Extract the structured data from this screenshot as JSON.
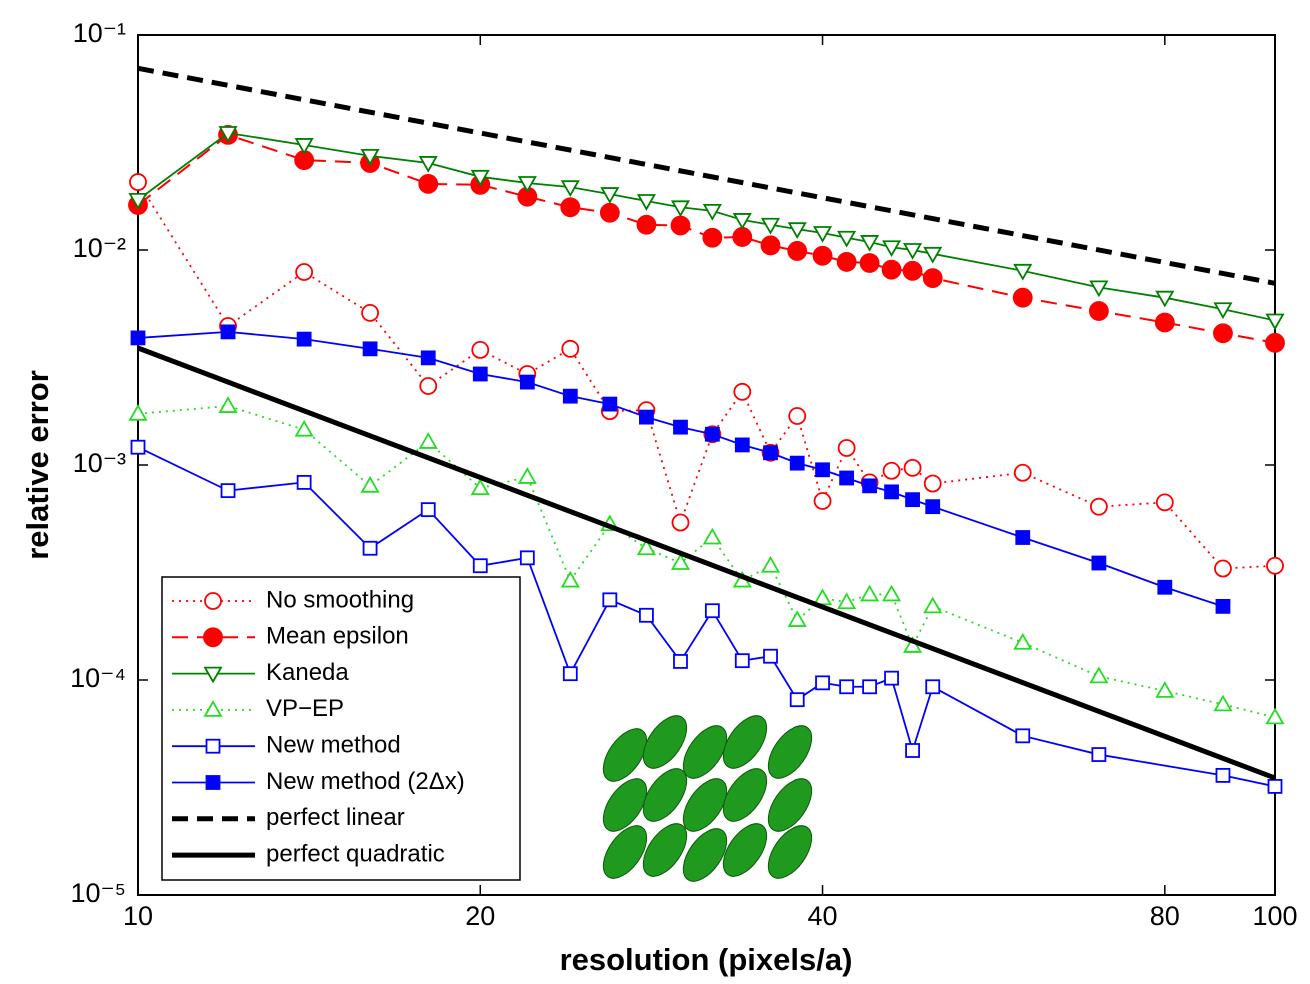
{
  "chart_data": {
    "type": "line",
    "xlog": true,
    "ylog": true,
    "grid": false,
    "legend": "lower left",
    "xlabel": "resolution (pixels/a)",
    "ylabel": "relative error",
    "xlim": [
      10,
      100
    ],
    "ylim": [
      1e-05,
      0.1
    ],
    "xticks": [
      10,
      20,
      40,
      80,
      100
    ],
    "yticks": [
      {
        "value": 0.1,
        "label": "10⁻¹"
      },
      {
        "value": 0.01,
        "label": "10⁻²"
      },
      {
        "value": 0.001,
        "label": "10⁻³"
      },
      {
        "value": 0.0001,
        "label": "10⁻⁴"
      },
      {
        "value": 1e-05,
        "label": "10⁻⁵"
      }
    ],
    "series": [
      {
        "name": "No smoothing",
        "color": "#ff0000",
        "dash": "dotted",
        "marker": "circle",
        "filled": false,
        "x": [
          10,
          12,
          14,
          16,
          18,
          20,
          22,
          24,
          26,
          28,
          30,
          32,
          34,
          36,
          38,
          40,
          42,
          44,
          46,
          48,
          50,
          60,
          70,
          80,
          90,
          100
        ],
        "values": [
          0.0207,
          0.00443,
          0.0079,
          0.0051,
          0.00233,
          0.00343,
          0.00265,
          0.00347,
          0.00178,
          0.0018,
          0.00054,
          0.00139,
          0.00219,
          0.00114,
          0.00169,
          0.00068,
          0.0012,
          0.00083,
          0.00094,
          0.00097,
          0.00082,
          0.00092,
          0.00064,
          0.00067,
          0.00033,
          0.00034
        ]
      },
      {
        "name": "Mean epsilon",
        "color": "#ff0000",
        "dash": "dashed",
        "marker": "circle",
        "filled": true,
        "x": [
          10,
          12,
          14,
          16,
          18,
          20,
          22,
          24,
          26,
          28,
          30,
          32,
          34,
          36,
          38,
          40,
          42,
          44,
          46,
          48,
          50,
          60,
          70,
          80,
          90,
          100
        ],
        "values": [
          0.0162,
          0.0343,
          0.0262,
          0.0254,
          0.0203,
          0.0201,
          0.0177,
          0.0158,
          0.0149,
          0.0131,
          0.013,
          0.0114,
          0.0115,
          0.0105,
          0.0099,
          0.0094,
          0.0088,
          0.0087,
          0.0081,
          0.008,
          0.0074,
          0.006,
          0.0052,
          0.0046,
          0.0041,
          0.0037
        ]
      },
      {
        "name": "Kaneda",
        "color": "#008000",
        "dash": "solid",
        "marker": "tri-down",
        "filled": false,
        "x": [
          10,
          12,
          14,
          16,
          18,
          20,
          22,
          24,
          26,
          28,
          30,
          32,
          34,
          36,
          38,
          40,
          42,
          44,
          46,
          48,
          50,
          60,
          70,
          80,
          90,
          100
        ],
        "values": [
          0.0171,
          0.035,
          0.0308,
          0.0274,
          0.0254,
          0.0219,
          0.0205,
          0.0196,
          0.0182,
          0.0169,
          0.0158,
          0.0152,
          0.0138,
          0.0131,
          0.0125,
          0.012,
          0.0114,
          0.0109,
          0.0103,
          0.01,
          0.0096,
          0.008,
          0.0067,
          0.006,
          0.0053,
          0.0047
        ]
      },
      {
        "name": "VP−EP",
        "color": "#22dd22",
        "dash": "dotted",
        "marker": "tri-up",
        "filled": false,
        "x": [
          10,
          12,
          14,
          16,
          18,
          20,
          22,
          24,
          26,
          28,
          30,
          32,
          34,
          36,
          38,
          40,
          42,
          44,
          46,
          48,
          50,
          60,
          70,
          80,
          90,
          100
        ],
        "values": [
          0.00173,
          0.00188,
          0.00146,
          0.0008,
          0.00128,
          0.00078,
          0.00088,
          0.00029,
          0.00053,
          0.00041,
          0.00035,
          0.00046,
          0.00029,
          0.00034,
          0.00019,
          0.00024,
          0.00023,
          0.00025,
          0.00025,
          0.000144,
          0.00022,
          0.000149,
          0.000104,
          8.9e-05,
          7.7e-05,
          6.7e-05
        ]
      },
      {
        "name": "New method",
        "color": "#0000ff",
        "dash": "solid",
        "marker": "square",
        "filled": false,
        "x": [
          10,
          12,
          14,
          16,
          18,
          20,
          22,
          24,
          26,
          28,
          30,
          32,
          34,
          36,
          38,
          40,
          42,
          44,
          46,
          48,
          50,
          60,
          70,
          90,
          100
        ],
        "values": [
          0.00121,
          0.00076,
          0.00083,
          0.00041,
          0.00062,
          0.00034,
          0.00037,
          0.000107,
          0.000236,
          0.0002,
          0.000122,
          0.00021,
          0.000123,
          0.000129,
          8.1e-05,
          9.7e-05,
          9.3e-05,
          9.3e-05,
          0.000102,
          4.7e-05,
          9.3e-05,
          5.5e-05,
          4.5e-05,
          3.6e-05,
          3.2e-05
        ]
      },
      {
        "name": "New method (2Δx)",
        "color": "#0000ff",
        "dash": "solid",
        "marker": "square",
        "filled": true,
        "x": [
          10,
          12,
          14,
          16,
          18,
          20,
          22,
          24,
          26,
          28,
          30,
          32,
          34,
          36,
          38,
          40,
          42,
          44,
          46,
          48,
          50,
          60,
          70,
          80,
          90
        ],
        "values": [
          0.0039,
          0.00416,
          0.00385,
          0.00347,
          0.00315,
          0.00265,
          0.00243,
          0.00209,
          0.00192,
          0.00167,
          0.0015,
          0.00139,
          0.00124,
          0.00114,
          0.00102,
          0.00095,
          0.00087,
          0.0008,
          0.00075,
          0.00069,
          0.00064,
          0.00046,
          0.00035,
          0.00027,
          0.00022
        ]
      },
      {
        "name": "perfect linear",
        "color": "#000000",
        "dash": "bold-dashed",
        "marker": "none",
        "filled": false,
        "x": [
          10,
          100
        ],
        "values": [
          0.07,
          0.007
        ]
      },
      {
        "name": "perfect quadratic",
        "color": "#000000",
        "dash": "bold-solid",
        "marker": "none",
        "filled": false,
        "x": [
          10,
          100
        ],
        "values": [
          0.0035,
          3.5e-05
        ]
      }
    ]
  }
}
